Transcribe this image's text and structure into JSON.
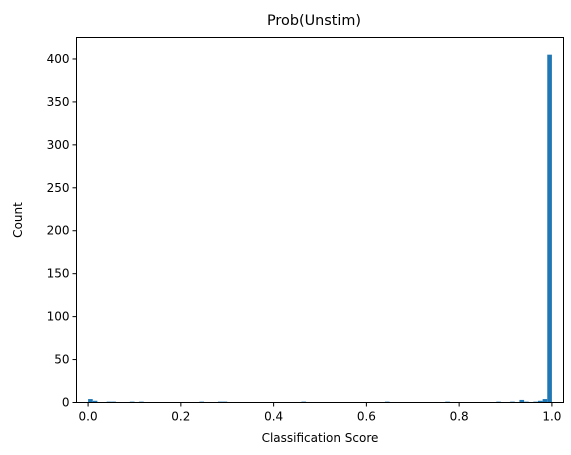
{
  "chart_data": {
    "type": "bar",
    "title": "Prob(Unstim)",
    "xlabel": "Classification Score",
    "ylabel": "Count",
    "xlim": [
      -0.025,
      1.025
    ],
    "ylim": [
      0,
      425
    ],
    "xticks": [
      0.0,
      0.2,
      0.4,
      0.6,
      0.8,
      1.0
    ],
    "xtick_labels": [
      "0.0",
      "0.2",
      "0.4",
      "0.6",
      "0.8",
      "1.0"
    ],
    "yticks": [
      0,
      50,
      100,
      150,
      200,
      250,
      300,
      350,
      400
    ],
    "ytick_labels": [
      "0",
      "50",
      "100",
      "150",
      "200",
      "250",
      "300",
      "350",
      "400"
    ],
    "grid": false,
    "bin_width": 0.01,
    "bins": [
      {
        "x": 0.0,
        "count": 4
      },
      {
        "x": 0.01,
        "count": 2
      },
      {
        "x": 0.04,
        "count": 1
      },
      {
        "x": 0.05,
        "count": 1
      },
      {
        "x": 0.09,
        "count": 1
      },
      {
        "x": 0.11,
        "count": 1
      },
      {
        "x": 0.24,
        "count": 1
      },
      {
        "x": 0.28,
        "count": 1
      },
      {
        "x": 0.29,
        "count": 1
      },
      {
        "x": 0.46,
        "count": 1
      },
      {
        "x": 0.64,
        "count": 1
      },
      {
        "x": 0.77,
        "count": 1
      },
      {
        "x": 0.88,
        "count": 1
      },
      {
        "x": 0.91,
        "count": 1
      },
      {
        "x": 0.93,
        "count": 3
      },
      {
        "x": 0.94,
        "count": 1
      },
      {
        "x": 0.96,
        "count": 1
      },
      {
        "x": 0.97,
        "count": 2
      },
      {
        "x": 0.98,
        "count": 4
      },
      {
        "x": 0.99,
        "count": 405
      }
    ],
    "bar_color": "#1f77b4"
  }
}
